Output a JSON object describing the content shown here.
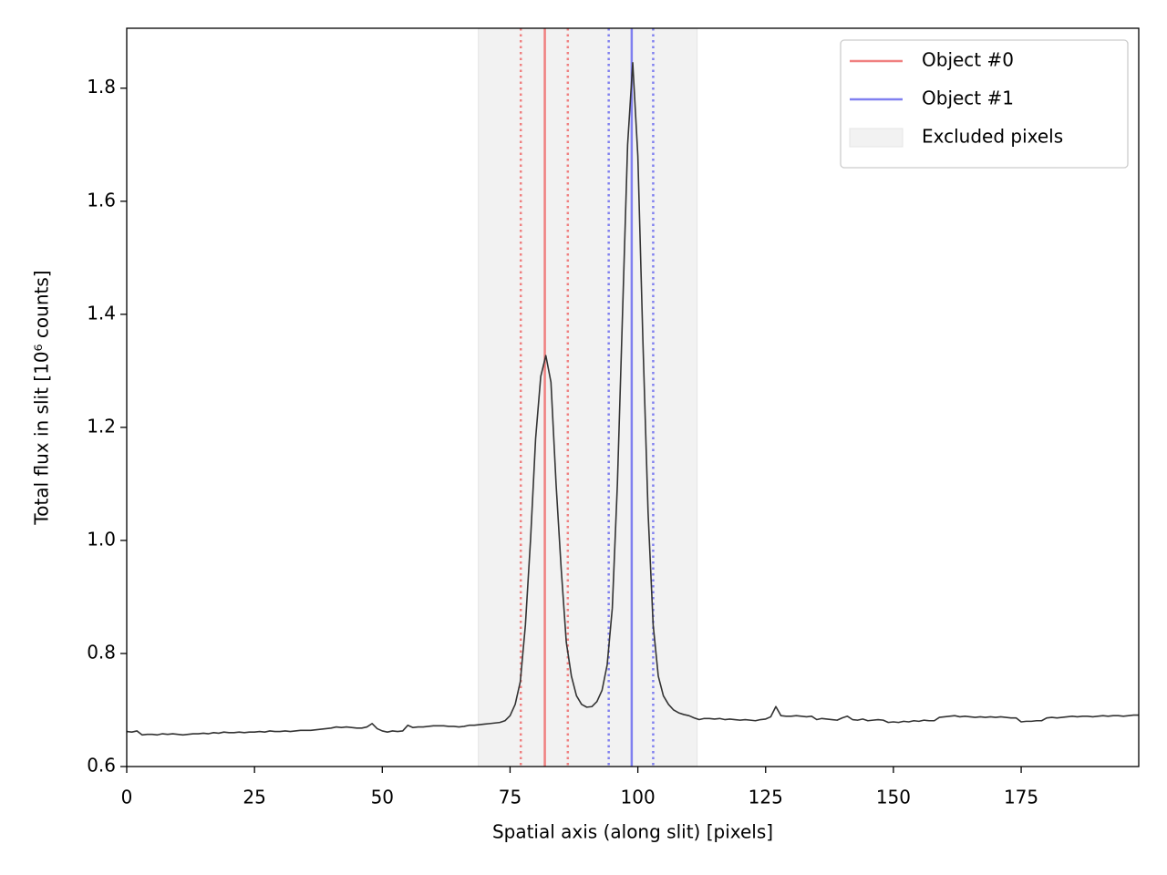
{
  "chart_data": {
    "type": "line",
    "xlabel": "Spatial axis (along slit)  [pixels]",
    "ylabel": "Total flux in slit  [10⁶ counts]",
    "xlim": [
      0,
      198
    ],
    "ylim": [
      0.6,
      1.906
    ],
    "xticks": [
      0,
      25,
      50,
      75,
      100,
      125,
      150,
      175
    ],
    "yticks": [
      0.6,
      0.8,
      {
        "value": 1,
        "label": "1.0"
      },
      1.2,
      1.4,
      1.6,
      1.8
    ],
    "legend": "upper right",
    "color": "#333333",
    "x": [
      0,
      1,
      2,
      3,
      4,
      5,
      6,
      7,
      8,
      9,
      10,
      11,
      12,
      13,
      14,
      15,
      16,
      17,
      18,
      19,
      20,
      21,
      22,
      23,
      24,
      25,
      26,
      27,
      28,
      29,
      30,
      31,
      32,
      33,
      34,
      35,
      36,
      37,
      38,
      39,
      40,
      41,
      42,
      43,
      44,
      45,
      46,
      47,
      48,
      49,
      50,
      51,
      52,
      53,
      54,
      55,
      56,
      57,
      58,
      59,
      60,
      61,
      62,
      63,
      64,
      65,
      66,
      67,
      68,
      69,
      70,
      71,
      72,
      73,
      74,
      75,
      76,
      77,
      78,
      79,
      80,
      81,
      82,
      83,
      84,
      85,
      86,
      87,
      88,
      89,
      90,
      91,
      92,
      93,
      94,
      95,
      96,
      97,
      98,
      99,
      100,
      101,
      102,
      103,
      104,
      105,
      106,
      107,
      108,
      109,
      110,
      111,
      112,
      113,
      114,
      115,
      116,
      117,
      118,
      119,
      120,
      121,
      122,
      123,
      124,
      125,
      126,
      127,
      128,
      129,
      130,
      131,
      132,
      133,
      134,
      135,
      136,
      137,
      138,
      139,
      140,
      141,
      142,
      143,
      144,
      145,
      146,
      147,
      148,
      149,
      150,
      151,
      152,
      153,
      154,
      155,
      156,
      157,
      158,
      159,
      160,
      161,
      162,
      163,
      164,
      165,
      166,
      167,
      168,
      169,
      170,
      171,
      172,
      173,
      174,
      175,
      176,
      177,
      178,
      179,
      180,
      181,
      182,
      183,
      184,
      185,
      186,
      187,
      188,
      189,
      190,
      191,
      192,
      193,
      194,
      195,
      196,
      197,
      198
    ],
    "values": [
      0.662,
      0.661,
      0.663,
      0.656,
      0.657,
      0.657,
      0.656,
      0.658,
      0.657,
      0.658,
      0.657,
      0.656,
      0.657,
      0.658,
      0.658,
      0.659,
      0.658,
      0.66,
      0.659,
      0.661,
      0.66,
      0.66,
      0.661,
      0.66,
      0.661,
      0.661,
      0.662,
      0.661,
      0.663,
      0.662,
      0.662,
      0.663,
      0.662,
      0.663,
      0.664,
      0.664,
      0.664,
      0.665,
      0.666,
      0.667,
      0.668,
      0.67,
      0.669,
      0.67,
      0.669,
      0.668,
      0.668,
      0.67,
      0.676,
      0.667,
      0.663,
      0.661,
      0.663,
      0.662,
      0.663,
      0.673,
      0.669,
      0.67,
      0.67,
      0.671,
      0.672,
      0.672,
      0.672,
      0.671,
      0.671,
      0.67,
      0.671,
      0.673,
      0.673,
      0.674,
      0.675,
      0.676,
      0.677,
      0.678,
      0.681,
      0.69,
      0.71,
      0.75,
      0.85,
      1.0,
      1.18,
      1.29,
      1.327,
      1.28,
      1.1,
      0.95,
      0.82,
      0.76,
      0.725,
      0.71,
      0.705,
      0.706,
      0.715,
      0.735,
      0.78,
      0.88,
      1.1,
      1.4,
      1.7,
      1.845,
      1.68,
      1.35,
      1.05,
      0.85,
      0.76,
      0.725,
      0.71,
      0.7,
      0.695,
      0.692,
      0.69,
      0.686,
      0.683,
      0.685,
      0.685,
      0.684,
      0.685,
      0.683,
      0.684,
      0.683,
      0.682,
      0.683,
      0.682,
      0.681,
      0.683,
      0.684,
      0.688,
      0.706,
      0.69,
      0.689,
      0.689,
      0.69,
      0.689,
      0.688,
      0.689,
      0.683,
      0.685,
      0.684,
      0.683,
      0.682,
      0.686,
      0.689,
      0.683,
      0.682,
      0.684,
      0.681,
      0.682,
      0.683,
      0.682,
      0.678,
      0.679,
      0.678,
      0.68,
      0.679,
      0.681,
      0.68,
      0.682,
      0.681,
      0.681,
      0.687,
      0.688,
      0.689,
      0.69,
      0.688,
      0.689,
      0.688,
      0.687,
      0.688,
      0.687,
      0.688,
      0.687,
      0.688,
      0.687,
      0.686,
      0.686,
      0.679,
      0.68,
      0.68,
      0.681,
      0.681,
      0.686,
      0.687,
      0.686,
      0.687,
      0.688,
      0.689,
      0.688,
      0.689,
      0.689,
      0.688,
      0.689,
      0.69,
      0.689,
      0.69,
      0.69,
      0.689,
      0.69,
      0.691,
      0.691
    ],
    "objects": [
      {
        "name": "Object #0",
        "color": "#f08080",
        "center": 81.8,
        "lower": 77.1,
        "upper": 86.3
      },
      {
        "name": "Object #1",
        "color": "#8080f0",
        "center": 98.8,
        "lower": 94.3,
        "upper": 103.0
      }
    ],
    "excluded": {
      "name": "Excluded pixels",
      "color": "#f2f2f2",
      "range": [
        68.8,
        111.6
      ]
    }
  }
}
